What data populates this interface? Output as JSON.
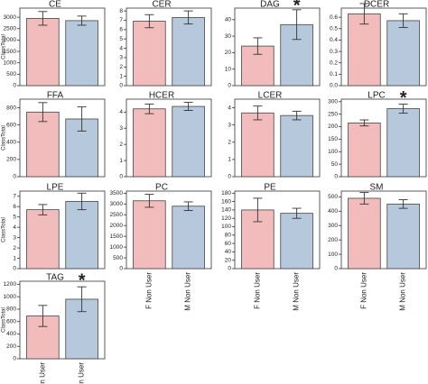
{
  "categories": [
    "F Non User",
    "M Non User"
  ],
  "colors": [
    "#f2bcbc",
    "#b6c8dc"
  ],
  "chart_data": [
    {
      "type": "bar",
      "title": "CE",
      "ylabel": "ClassTotal",
      "values": [
        2950,
        2850
      ],
      "errors": [
        300,
        200
      ],
      "ylim": [
        0,
        3400
      ],
      "yticks": [
        0,
        500,
        1000,
        1500,
        2000,
        2500,
        3000
      ]
    },
    {
      "type": "bar",
      "title": "CER",
      "values": [
        6.9,
        7.3
      ],
      "errors": [
        0.7,
        0.7
      ],
      "ylim": [
        0,
        8.3
      ],
      "yticks": [
        0,
        1,
        2,
        3,
        4,
        5,
        6,
        7,
        8
      ]
    },
    {
      "type": "bar",
      "title": "DAG",
      "values": [
        24,
        37
      ],
      "errors": [
        5,
        9
      ],
      "ylim": [
        0,
        47
      ],
      "yticks": [
        0,
        10,
        20,
        30,
        40
      ],
      "annotation": {
        "text": "*",
        "category": "M Non User"
      }
    },
    {
      "type": "bar",
      "title": "DCER",
      "values": [
        0.63,
        0.57
      ],
      "errors": [
        0.09,
        0.06
      ],
      "ylim": [
        0,
        0.68
      ],
      "yticks": [
        {
          "value": 0,
          "label": "0.0"
        },
        0.1,
        0.2,
        0.3,
        0.4,
        0.5,
        0.6
      ]
    },
    {
      "type": "bar",
      "title": "FFA",
      "ylabel": "ClassTotal",
      "values": [
        750,
        670
      ],
      "errors": [
        110,
        140
      ],
      "ylim": [
        0,
        900
      ],
      "yticks": [
        0,
        200,
        400,
        600,
        800
      ]
    },
    {
      "type": "bar",
      "title": "HCER",
      "values": [
        4.2,
        4.35
      ],
      "errors": [
        0.3,
        0.25
      ],
      "ylim": [
        0,
        4.8
      ],
      "yticks": [
        0,
        1,
        2,
        3,
        4
      ]
    },
    {
      "type": "bar",
      "title": "LCER",
      "values": [
        3.7,
        3.55
      ],
      "errors": [
        0.4,
        0.25
      ],
      "ylim": [
        0,
        4.5
      ],
      "yticks": [
        0,
        1,
        2,
        3,
        4
      ]
    },
    {
      "type": "bar",
      "title": "LPC",
      "values": [
        215,
        272
      ],
      "errors": [
        12,
        18
      ],
      "ylim": [
        0,
        310
      ],
      "yticks": [
        0,
        50,
        100,
        150,
        200,
        250,
        300
      ],
      "annotation": {
        "text": "*",
        "category": "M Non User"
      }
    },
    {
      "type": "bar",
      "title": "LPE",
      "ylabel": "ClassTotal",
      "values": [
        5.7,
        6.5
      ],
      "errors": [
        0.5,
        0.8
      ],
      "ylim": [
        0,
        7.5
      ],
      "yticks": [
        0,
        1,
        2,
        3,
        4,
        5,
        6,
        7
      ]
    },
    {
      "type": "bar",
      "title": "PC",
      "values": [
        3150,
        2900
      ],
      "errors": [
        300,
        200
      ],
      "ylim": [
        0,
        3600
      ],
      "yticks": [
        0,
        500,
        1000,
        1500,
        2000,
        2500,
        3000,
        3500
      ]
    },
    {
      "type": "bar",
      "title": "PE",
      "values": [
        140,
        132
      ],
      "errors": [
        28,
        12
      ],
      "ylim": [
        0,
        185
      ],
      "yticks": [
        0,
        20,
        40,
        60,
        80,
        100,
        120,
        140,
        160,
        180
      ]
    },
    {
      "type": "bar",
      "title": "SM",
      "values": [
        490,
        450
      ],
      "errors": [
        40,
        30
      ],
      "ylim": [
        0,
        540
      ],
      "yticks": [
        0,
        100,
        200,
        300,
        400,
        500
      ]
    },
    {
      "type": "bar",
      "title": "TAG",
      "ylabel": "ClassTotal",
      "values": [
        690,
        960
      ],
      "errors": [
        170,
        200
      ],
      "ylim": [
        0,
        1250
      ],
      "yticks": [
        0,
        200,
        400,
        600,
        800,
        1000,
        1200
      ],
      "annotation": {
        "text": "*",
        "category": "M Non User"
      }
    }
  ]
}
